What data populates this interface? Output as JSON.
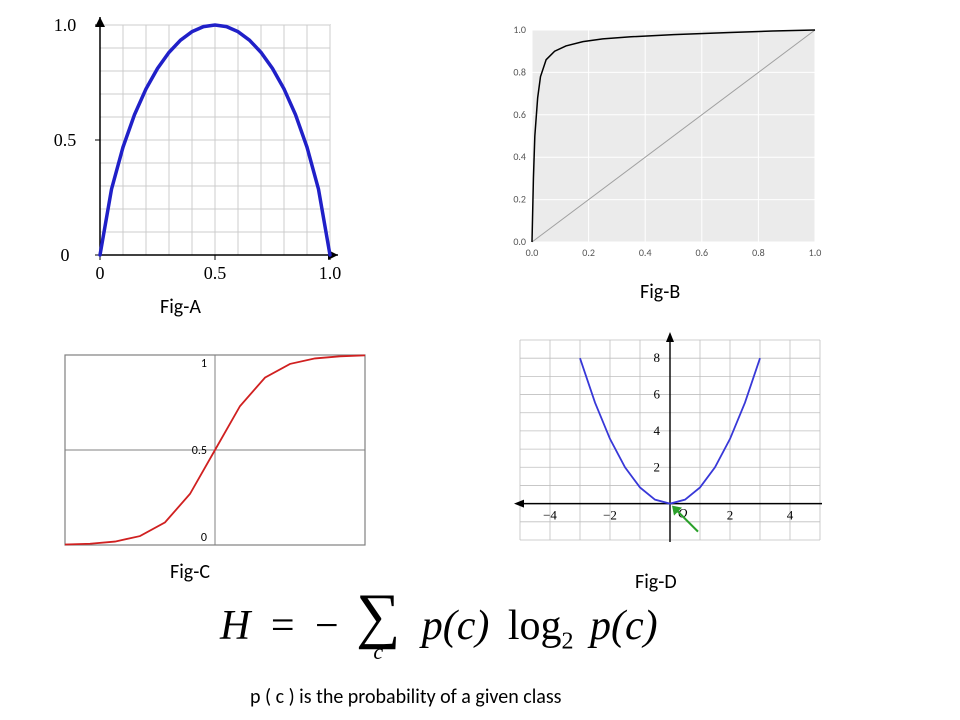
{
  "figA": {
    "type": "line",
    "label": "Fig-A",
    "xlim": [
      0,
      1
    ],
    "ylim": [
      0,
      1
    ],
    "xticks": [
      0,
      0.5,
      1.0
    ],
    "yticks": [
      0,
      0.5,
      1.0
    ],
    "xticklabels": [
      "0",
      "0.5",
      "1.0"
    ],
    "yticklabels": [
      "0",
      "0.5",
      "1.0"
    ],
    "tick_fontsize": 18,
    "grid": true,
    "grid_color": "#cccccc",
    "border_color": "#888888",
    "axis_color": "#000000",
    "line_color": "#2020c8",
    "line_width": 3.5,
    "arrowheads": true,
    "data_x": [
      0,
      0.05,
      0.1,
      0.15,
      0.2,
      0.25,
      0.3,
      0.35,
      0.4,
      0.45,
      0.5,
      0.55,
      0.6,
      0.65,
      0.7,
      0.75,
      0.8,
      0.85,
      0.9,
      0.95,
      1.0
    ],
    "data_y": [
      0,
      0.286,
      0.469,
      0.61,
      0.722,
      0.811,
      0.881,
      0.934,
      0.971,
      0.993,
      1.0,
      0.993,
      0.971,
      0.934,
      0.881,
      0.811,
      0.722,
      0.61,
      0.469,
      0.286,
      0
    ]
  },
  "figB": {
    "type": "roc-line",
    "label": "Fig-B",
    "xlim": [
      0,
      1
    ],
    "ylim": [
      0,
      1
    ],
    "xticks": [
      0,
      0.2,
      0.4,
      0.6,
      0.8,
      1.0
    ],
    "yticks": [
      0,
      0.2,
      0.4,
      0.6,
      0.8,
      1.0
    ],
    "xticklabels": [
      "0.0",
      "0.2",
      "0.4",
      "0.6",
      "0.8",
      "1.0"
    ],
    "yticklabels": [
      "0.0",
      "0.2",
      "0.4",
      "0.6",
      "0.8",
      "1.0"
    ],
    "tick_fontsize": 10,
    "panel_color": "#ebebeb",
    "grid_color": "#ffffff",
    "curve_color": "#000000",
    "curve_width": 1.5,
    "diag_color": "#a0a0a0",
    "diag_width": 1,
    "data_x": [
      0,
      0.005,
      0.01,
      0.02,
      0.03,
      0.05,
      0.08,
      0.12,
      0.18,
      0.25,
      0.35,
      0.5,
      0.7,
      0.85,
      1.0
    ],
    "data_y": [
      0,
      0.3,
      0.5,
      0.68,
      0.78,
      0.86,
      0.9,
      0.925,
      0.945,
      0.958,
      0.968,
      0.978,
      0.988,
      0.995,
      1.0
    ]
  },
  "figC": {
    "type": "sigmoid",
    "label": "Fig-C",
    "xlim": [
      -6,
      6
    ],
    "ylim": [
      0,
      1
    ],
    "yticks": [
      0,
      0.5,
      1
    ],
    "yticklabels": [
      "0",
      "0.5",
      "1"
    ],
    "tick_fontsize": 12,
    "border_color": "#808080",
    "mid_x_color": "#808080",
    "mid_y_color": "#808080",
    "line_color": "#d02020",
    "line_width": 1.8,
    "data_x": [
      -6,
      -5,
      -4,
      -3,
      -2,
      -1,
      0,
      1,
      2,
      3,
      4,
      5,
      6
    ],
    "data_y": [
      0.0025,
      0.0067,
      0.018,
      0.047,
      0.119,
      0.269,
      0.5,
      0.731,
      0.881,
      0.953,
      0.982,
      0.993,
      0.998
    ]
  },
  "figD": {
    "type": "parabola",
    "label": "Fig-D",
    "xlim": [
      -5,
      5
    ],
    "ylim": [
      -2,
      9
    ],
    "xticks": [
      -4,
      -2,
      2,
      4
    ],
    "yticks": [
      2,
      4,
      6,
      8
    ],
    "tick_fontsize": 13,
    "grid": true,
    "grid_color": "#bfbfbf",
    "axis_color": "#000000",
    "origin_label": "O",
    "line_color": "#3838d8",
    "line_width": 1.8,
    "arrow_color": "#2aa02a",
    "data_x": [
      -3,
      -2.5,
      -2,
      -1.5,
      -1,
      -0.5,
      0,
      0.5,
      1,
      1.5,
      2,
      2.5,
      3
    ],
    "data_y": [
      8,
      5.56,
      3.56,
      2.0,
      0.89,
      0.22,
      0,
      0.22,
      0.89,
      2.0,
      3.56,
      5.56,
      8
    ]
  },
  "formula": {
    "lhs": "H",
    "equals": "=",
    "minus": "−",
    "sigma_index": "c",
    "p_open": "p(c)",
    "log_text": "log",
    "log_base": "2",
    "p_close": "p(c)"
  },
  "subtitle": "p ( c )  is the probability of a given class"
}
